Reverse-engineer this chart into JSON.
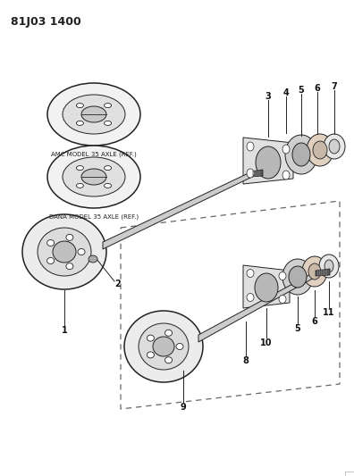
{
  "title_code": "81J03 1400",
  "background_color": "#ffffff",
  "line_color": "#222222",
  "label_color": "#111111",
  "fig_width": 3.96,
  "fig_height": 5.33,
  "dpi": 100,
  "amc_label": "AMC MODEL 35 AXLE (REF.)",
  "dana_label": "DANA MODEL 35 AXLE (REF.)"
}
